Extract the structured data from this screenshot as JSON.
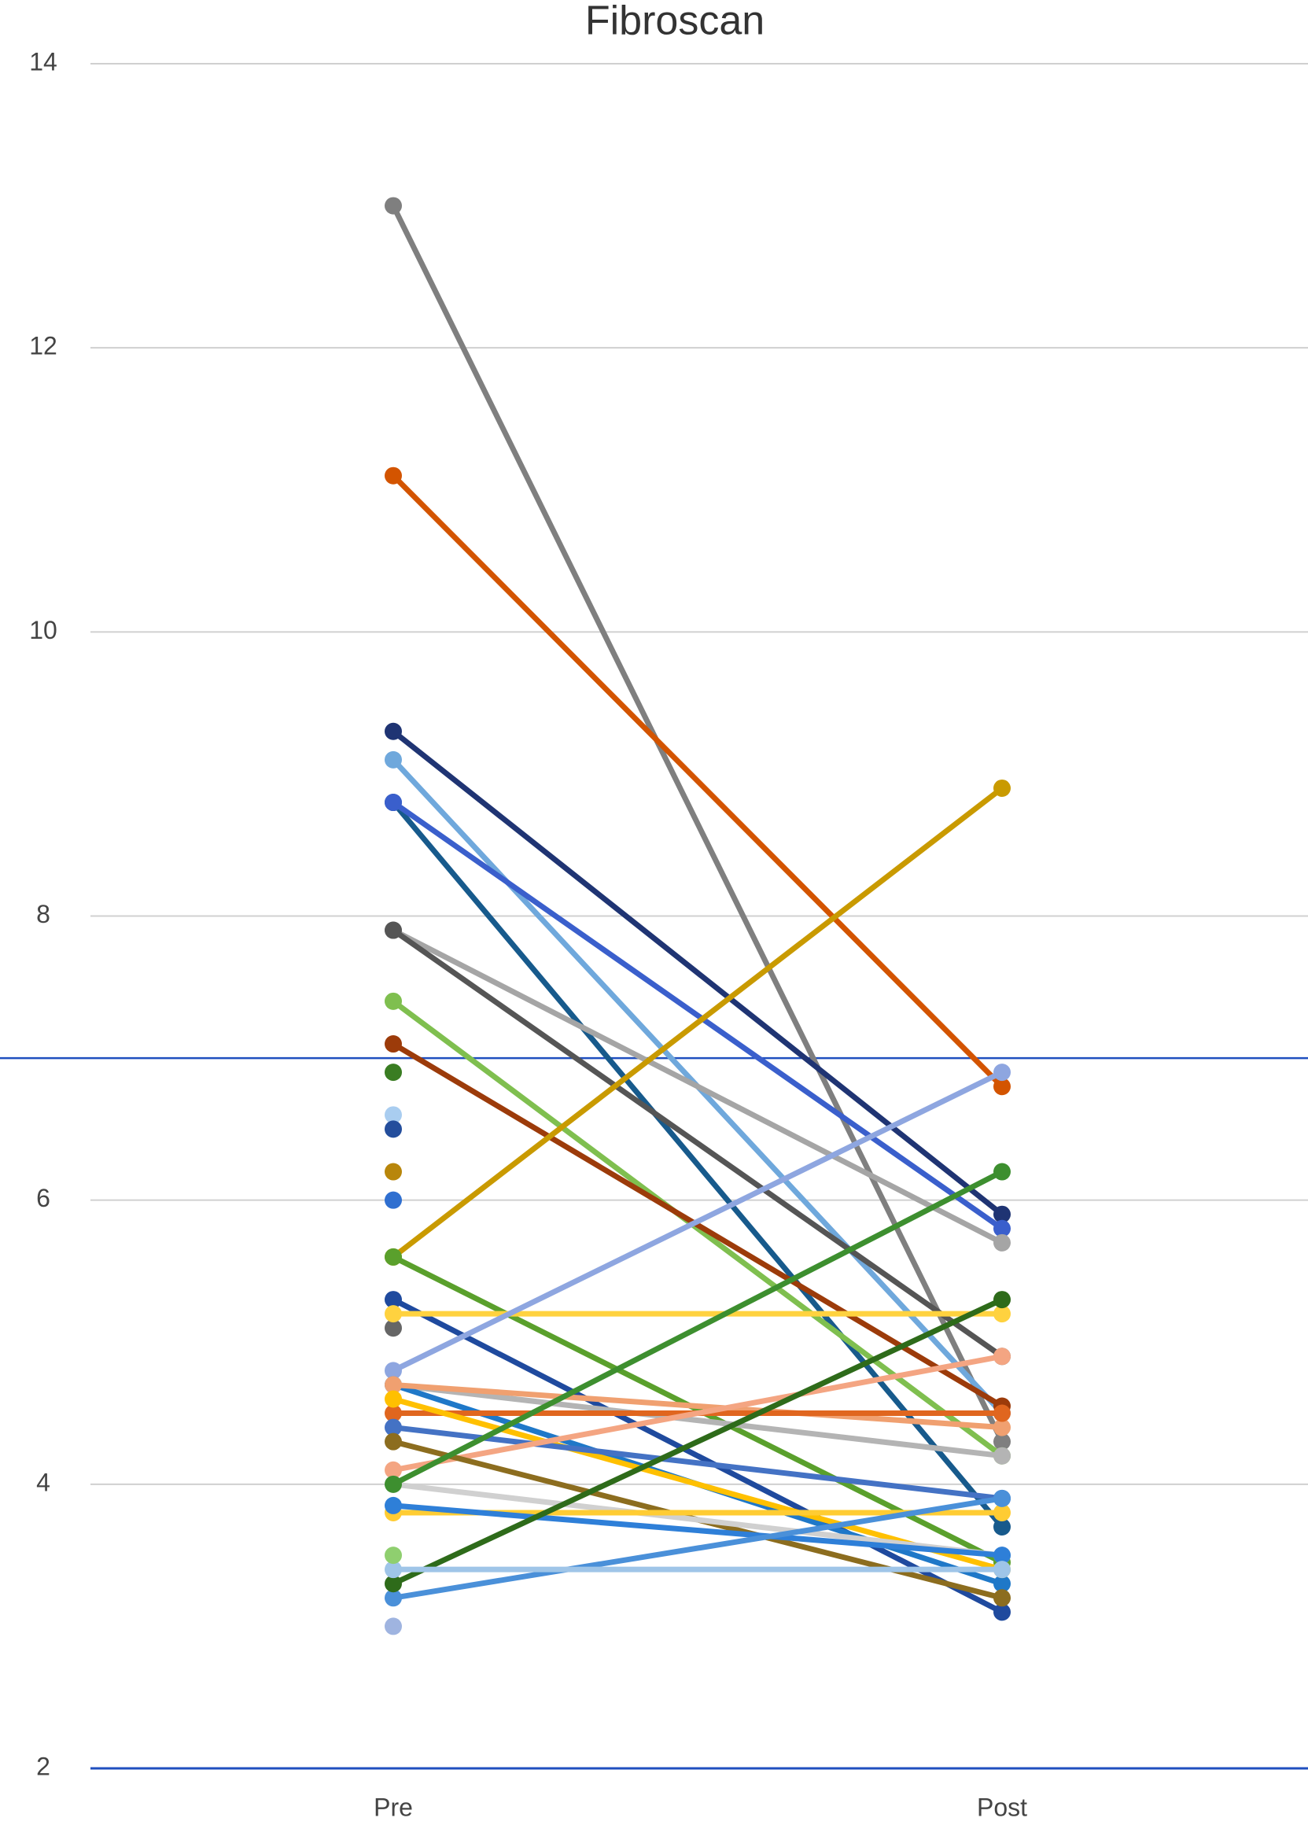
{
  "chart_data": {
    "type": "line",
    "title": "Fibroscan",
    "categories": [
      "Pre",
      "Post"
    ],
    "ylim": [
      2,
      14
    ],
    "yticks": [
      2,
      4,
      6,
      8,
      10,
      12,
      14
    ],
    "grid": true,
    "reference_lines": [
      {
        "value": 7,
        "color": "#1f4fbf"
      }
    ],
    "series": [
      {
        "color": "#7f7f7f",
        "values": [
          13.0,
          4.3
        ]
      },
      {
        "color": "#d35400",
        "values": [
          11.1,
          6.8
        ]
      },
      {
        "color": "#1f3473",
        "values": [
          9.3,
          5.9
        ]
      },
      {
        "color": "#6fa8dc",
        "values": [
          9.1,
          4.5
        ]
      },
      {
        "color": "#175a8c",
        "values": [
          8.8,
          3.7
        ]
      },
      {
        "color": "#3a5fcc",
        "values": [
          8.8,
          5.8
        ]
      },
      {
        "color": "#a5a5a5",
        "values": [
          7.9,
          5.7
        ]
      },
      {
        "color": "#555555",
        "values": [
          7.9,
          4.9
        ]
      },
      {
        "color": "#7fbf4f",
        "values": [
          7.4,
          4.2
        ]
      },
      {
        "color": "#9c3b0a",
        "values": [
          7.1,
          4.55
        ]
      },
      {
        "color": "#3a7d22",
        "values": [
          6.9,
          null
        ]
      },
      {
        "color": "#a9cdf0",
        "values": [
          6.6,
          null
        ]
      },
      {
        "color": "#244e9c",
        "values": [
          6.5,
          null
        ]
      },
      {
        "color": "#b8860b",
        "values": [
          6.2,
          null
        ]
      },
      {
        "color": "#2f6fd0",
        "values": [
          6.0,
          null
        ]
      },
      {
        "color": "#c99a00",
        "values": [
          5.6,
          8.9
        ]
      },
      {
        "color": "#5aa02c",
        "values": [
          5.6,
          3.45
        ]
      },
      {
        "color": "#1f4a9e",
        "values": [
          5.3,
          3.1
        ]
      },
      {
        "color": "#666666",
        "values": [
          5.1,
          null
        ]
      },
      {
        "color": "#ffd23f",
        "values": [
          5.2,
          5.2
        ]
      },
      {
        "color": "#8ea6e0",
        "values": [
          4.8,
          6.9
        ]
      },
      {
        "color": "#b4b4b4",
        "values": [
          4.7,
          4.2
        ]
      },
      {
        "color": "#1f78c8",
        "values": [
          4.7,
          3.3
        ]
      },
      {
        "color": "#f0a070",
        "values": [
          4.7,
          4.4
        ]
      },
      {
        "color": "#e0661f",
        "values": [
          4.5,
          4.5
        ]
      },
      {
        "color": "#ffc000",
        "values": [
          4.6,
          3.4
        ]
      },
      {
        "color": "#4472c4",
        "values": [
          4.4,
          3.9
        ]
      },
      {
        "color": "#f4a582",
        "values": [
          4.1,
          4.9
        ]
      },
      {
        "color": "#8c6d1f",
        "values": [
          4.3,
          3.2
        ]
      },
      {
        "color": "#d0d0d0",
        "values": [
          4.0,
          3.5
        ]
      },
      {
        "color": "#ffcc33",
        "values": [
          3.8,
          3.8
        ]
      },
      {
        "color": "#2e7fd8",
        "values": [
          3.85,
          3.5
        ]
      },
      {
        "color": "#4a90d9",
        "values": [
          3.2,
          3.9
        ]
      },
      {
        "color": "#2e6b1a",
        "values": [
          3.3,
          5.3
        ]
      },
      {
        "color": "#3d8f2f",
        "values": [
          4.0,
          6.2
        ]
      },
      {
        "color": "#9fc5e8",
        "values": [
          3.4,
          3.4
        ]
      },
      {
        "color": "#8fcf6f",
        "values": [
          3.5,
          null
        ]
      },
      {
        "color": "#9fb4e0",
        "values": [
          3.0,
          null
        ]
      }
    ]
  }
}
